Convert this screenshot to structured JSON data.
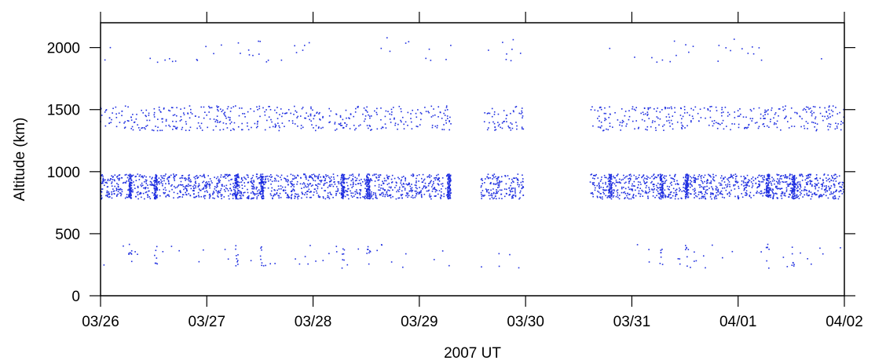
{
  "chart_data": {
    "type": "scatter",
    "title": "",
    "xlabel": "2007 UT",
    "ylabel": "Altitude (km)",
    "x_tick_labels": [
      "03/26",
      "03/27",
      "03/28",
      "03/29",
      "03/30",
      "03/31",
      "04/01",
      "04/02"
    ],
    "y_ticks": [
      0,
      500,
      1000,
      1500,
      2000
    ],
    "x_range_days": [
      0,
      7
    ],
    "ylim": [
      0,
      2200
    ],
    "grid": false,
    "legend": "none",
    "marker_color": "#1f2fe0",
    "bands": [
      {
        "name": "",
        "altitude_range": [
          780,
          980
        ],
        "density": "dense",
        "active_intervals_days": [
          [
            0.0,
            3.3
          ],
          [
            3.58,
            3.98
          ],
          [
            4.6,
            7.0
          ]
        ],
        "dense_columns_days": [
          0.28,
          0.52,
          1.28,
          1.52,
          2.28,
          2.52,
          3.28,
          4.8,
          5.28,
          5.52,
          6.28,
          6.52
        ]
      },
      {
        "name": "",
        "altitude_range": [
          1330,
          1530
        ],
        "density": "medium",
        "active_intervals_days": [
          [
            0.0,
            3.3
          ],
          [
            3.58,
            3.98
          ],
          [
            4.6,
            7.0
          ]
        ],
        "dense_columns_days": []
      },
      {
        "name": "",
        "altitude_range": [
          1880,
          2080
        ],
        "density": "sparse",
        "active_intervals_days": [
          [
            0.0,
            3.3
          ],
          [
            3.58,
            3.98
          ],
          [
            4.6,
            7.0
          ]
        ],
        "dense_columns_days": []
      },
      {
        "name": "",
        "altitude_range": [
          220,
          420
        ],
        "density": "sparse",
        "active_intervals_days": [
          [
            0.0,
            3.3
          ],
          [
            3.58,
            3.98
          ],
          [
            4.6,
            7.0
          ]
        ],
        "dense_columns_days": [
          0.28,
          0.52,
          1.28,
          1.52,
          2.28,
          2.52,
          5.28,
          5.52,
          6.28,
          6.52
        ]
      }
    ]
  }
}
